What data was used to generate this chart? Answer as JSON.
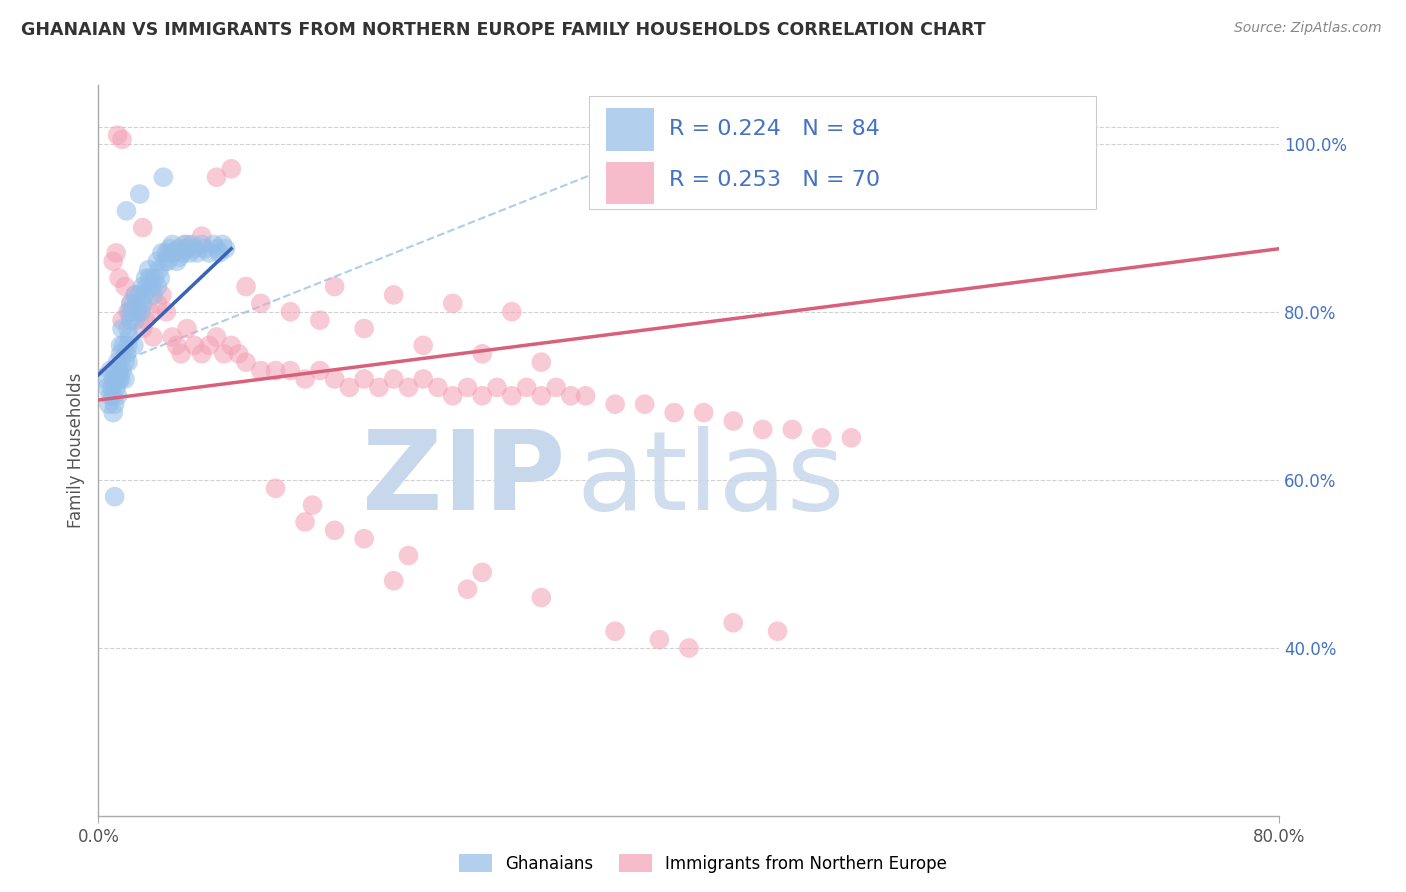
{
  "title": "GHANAIAN VS IMMIGRANTS FROM NORTHERN EUROPE FAMILY HOUSEHOLDS CORRELATION CHART",
  "source": "Source: ZipAtlas.com",
  "ylabel": "Family Households",
  "legend_labels": [
    "Ghanaians",
    "Immigrants from Northern Europe"
  ],
  "blue_R": "0.224",
  "blue_N": "84",
  "pink_R": "0.253",
  "pink_N": "70",
  "blue_color": "#92BDE8",
  "pink_color": "#F4A0B5",
  "trend_blue": "#3A63B8",
  "trend_pink": "#D9607A",
  "ref_line_color": "#92BDE8",
  "text_color": "#333333",
  "source_color": "#888888",
  "right_tick_color": "#4472C4",
  "legend_text_color": "#4472C4",
  "grid_color": "#CCCCCC",
  "watermark_zip_color": "#D0DFF0",
  "watermark_atlas_color": "#C0D0E8",
  "xmin": 0.0,
  "xmax": 0.8,
  "ymin": 0.2,
  "ymax": 1.07,
  "right_yticks": [
    0.4,
    0.6,
    0.8,
    1.0
  ],
  "right_yticklabels": [
    "40.0%",
    "60.0%",
    "80.0%",
    "100.0%"
  ],
  "blue_x": [
    0.005,
    0.006,
    0.007,
    0.008,
    0.008,
    0.009,
    0.01,
    0.01,
    0.01,
    0.011,
    0.011,
    0.012,
    0.012,
    0.013,
    0.013,
    0.014,
    0.014,
    0.015,
    0.015,
    0.015,
    0.016,
    0.016,
    0.017,
    0.018,
    0.018,
    0.019,
    0.02,
    0.02,
    0.02,
    0.021,
    0.021,
    0.022,
    0.022,
    0.023,
    0.024,
    0.025,
    0.025,
    0.026,
    0.027,
    0.028,
    0.029,
    0.03,
    0.03,
    0.031,
    0.032,
    0.033,
    0.034,
    0.035,
    0.036,
    0.037,
    0.038,
    0.04,
    0.04,
    0.041,
    0.042,
    0.043,
    0.045,
    0.046,
    0.047,
    0.048,
    0.05,
    0.051,
    0.053,
    0.054,
    0.055,
    0.057,
    0.058,
    0.06,
    0.062,
    0.063,
    0.065,
    0.067,
    0.07,
    0.072,
    0.075,
    0.078,
    0.08,
    0.082,
    0.084,
    0.086,
    0.044,
    0.028,
    0.019,
    0.011
  ],
  "blue_y": [
    0.72,
    0.71,
    0.69,
    0.73,
    0.7,
    0.71,
    0.7,
    0.72,
    0.68,
    0.73,
    0.69,
    0.72,
    0.71,
    0.7,
    0.74,
    0.72,
    0.73,
    0.75,
    0.76,
    0.72,
    0.73,
    0.78,
    0.76,
    0.74,
    0.72,
    0.75,
    0.78,
    0.76,
    0.74,
    0.8,
    0.77,
    0.79,
    0.81,
    0.8,
    0.76,
    0.82,
    0.79,
    0.81,
    0.8,
    0.82,
    0.8,
    0.81,
    0.83,
    0.82,
    0.84,
    0.83,
    0.85,
    0.84,
    0.83,
    0.82,
    0.84,
    0.83,
    0.86,
    0.85,
    0.84,
    0.87,
    0.86,
    0.87,
    0.86,
    0.875,
    0.88,
    0.87,
    0.86,
    0.875,
    0.865,
    0.87,
    0.88,
    0.875,
    0.87,
    0.88,
    0.875,
    0.87,
    0.88,
    0.875,
    0.87,
    0.88,
    0.875,
    0.87,
    0.88,
    0.875,
    0.96,
    0.94,
    0.92,
    0.58
  ],
  "pink_x": [
    0.01,
    0.012,
    0.014,
    0.016,
    0.018,
    0.02,
    0.022,
    0.025,
    0.027,
    0.03,
    0.032,
    0.035,
    0.037,
    0.04,
    0.043,
    0.046,
    0.05,
    0.053,
    0.056,
    0.06,
    0.065,
    0.07,
    0.075,
    0.08,
    0.085,
    0.09,
    0.095,
    0.1,
    0.11,
    0.12,
    0.13,
    0.14,
    0.15,
    0.16,
    0.17,
    0.18,
    0.19,
    0.2,
    0.21,
    0.22,
    0.23,
    0.24,
    0.25,
    0.26,
    0.27,
    0.28,
    0.29,
    0.3,
    0.31,
    0.32,
    0.33,
    0.35,
    0.37,
    0.39,
    0.41,
    0.43,
    0.45,
    0.47,
    0.49,
    0.51,
    0.2,
    0.25,
    0.3,
    0.14,
    0.16,
    0.18,
    0.21,
    0.26,
    0.12,
    0.145
  ],
  "pink_y": [
    0.86,
    0.87,
    0.84,
    0.79,
    0.83,
    0.8,
    0.81,
    0.82,
    0.8,
    0.78,
    0.79,
    0.8,
    0.77,
    0.81,
    0.82,
    0.8,
    0.77,
    0.76,
    0.75,
    0.78,
    0.76,
    0.75,
    0.76,
    0.77,
    0.75,
    0.76,
    0.75,
    0.74,
    0.73,
    0.73,
    0.73,
    0.72,
    0.73,
    0.72,
    0.71,
    0.72,
    0.71,
    0.72,
    0.71,
    0.72,
    0.71,
    0.7,
    0.71,
    0.7,
    0.71,
    0.7,
    0.71,
    0.7,
    0.71,
    0.7,
    0.7,
    0.69,
    0.69,
    0.68,
    0.68,
    0.67,
    0.66,
    0.66,
    0.65,
    0.65,
    0.48,
    0.47,
    0.46,
    0.55,
    0.54,
    0.53,
    0.51,
    0.49,
    0.59,
    0.57
  ],
  "extra_pink_x": [
    0.013,
    0.016,
    0.03,
    0.05,
    0.06,
    0.08,
    0.07,
    0.09,
    0.11,
    0.13,
    0.15,
    0.18,
    0.22,
    0.26,
    0.3,
    0.16,
    0.2,
    0.24,
    0.28,
    0.1,
    0.4,
    0.35,
    0.38,
    0.43,
    0.46
  ],
  "extra_pink_y": [
    1.01,
    1.005,
    0.9,
    0.87,
    0.88,
    0.96,
    0.89,
    0.97,
    0.81,
    0.8,
    0.79,
    0.78,
    0.76,
    0.75,
    0.74,
    0.83,
    0.82,
    0.81,
    0.8,
    0.83,
    0.4,
    0.42,
    0.41,
    0.43,
    0.42
  ]
}
